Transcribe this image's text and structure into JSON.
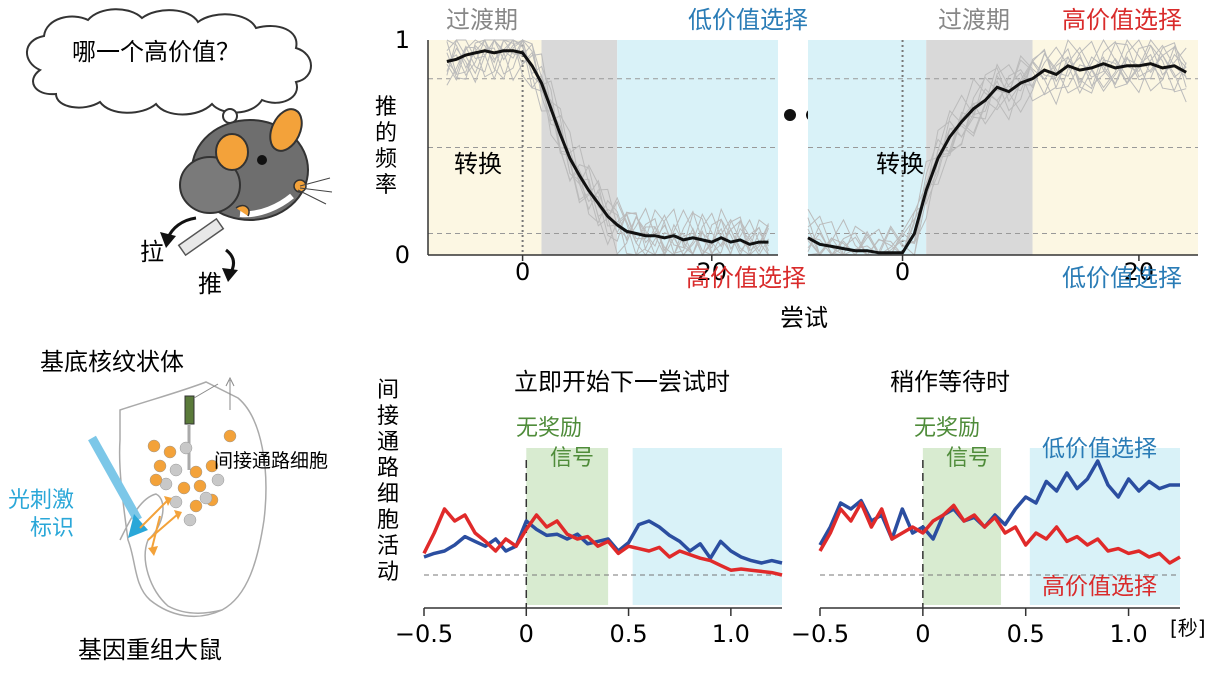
{
  "colors": {
    "high_value": "#d92b2b",
    "low_value": "#2a7cb6",
    "reward": "#4f8c3a",
    "ind_blue": "#2b4ea0",
    "ind_red": "#e02a2a",
    "optotag": "#2aa7d8",
    "neuron": "#f3a23a",
    "neuron_other": "#c8c8c8",
    "transition_shade": "#d9d9d9",
    "low_shade": "#d9f2f8",
    "high_shade": "#fcf7e3",
    "reward_shade": "#d8ebd0"
  },
  "mouse": {
    "thought": "哪一个高价值？",
    "pull": "拉",
    "push": "推"
  },
  "brain": {
    "title": "基底核纹状体",
    "cell_label": "间接通路细胞",
    "opto_line1": "光刺激",
    "opto_line2": "标识",
    "caption": "基因重组大鼠"
  },
  "chart_data": [
    {
      "id": "behavior-left",
      "type": "line",
      "title": "",
      "ylabel": "推的频率",
      "xlabel": "尝试",
      "xlim": [
        -10,
        27
      ],
      "ylim": [
        0,
        1
      ],
      "x_ticks": [
        {
          "v": 0,
          "label": "0"
        },
        {
          "v": 20,
          "label": "20"
        }
      ],
      "y_ticks": [
        {
          "v": 0,
          "label": "0"
        },
        {
          "v": 1,
          "label": "1"
        }
      ],
      "annotations": {
        "switch": "转换",
        "transition": "过渡期",
        "block_after": "低价值选择",
        "block_before": "高价值选择"
      },
      "regions": [
        {
          "x0": -10,
          "x1": 2,
          "kind": "high"
        },
        {
          "x0": 2,
          "x1": 10,
          "kind": "transition"
        },
        {
          "x0": 10,
          "x1": 27,
          "kind": "low"
        }
      ],
      "series": [
        {
          "name": "平均",
          "x": [
            -8,
            -7,
            -6,
            -5,
            -4,
            -3,
            -2,
            -1,
            0,
            1,
            2,
            3,
            4,
            5,
            6,
            7,
            8,
            9,
            10,
            11,
            12,
            13,
            14,
            15,
            16,
            17,
            18,
            19,
            20,
            21,
            22,
            23,
            24,
            25,
            26
          ],
          "values": [
            0.9,
            0.91,
            0.93,
            0.94,
            0.95,
            0.94,
            0.95,
            0.95,
            0.94,
            0.88,
            0.8,
            0.68,
            0.56,
            0.45,
            0.37,
            0.3,
            0.24,
            0.18,
            0.14,
            0.11,
            0.1,
            0.09,
            0.09,
            0.08,
            0.09,
            0.07,
            0.08,
            0.07,
            0.06,
            0.08,
            0.06,
            0.07,
            0.05,
            0.06,
            0.06
          ]
        }
      ]
    },
    {
      "id": "behavior-right",
      "type": "line",
      "title": "",
      "ylabel": "",
      "xlabel": "",
      "xlim": [
        -8,
        25
      ],
      "ylim": [
        0,
        1
      ],
      "x_ticks": [
        {
          "v": 0,
          "label": "0"
        },
        {
          "v": 20,
          "label": "20"
        }
      ],
      "y_ticks": [],
      "annotations": {
        "switch": "转换",
        "transition": "过渡期",
        "block_after": "高价值选择",
        "block_before": "低价值选择"
      },
      "regions": [
        {
          "x0": -8,
          "x1": 2,
          "kind": "low"
        },
        {
          "x0": 2,
          "x1": 11,
          "kind": "transition"
        },
        {
          "x0": 11,
          "x1": 25,
          "kind": "high"
        }
      ],
      "series": [
        {
          "name": "平均",
          "x": [
            -8,
            -7,
            -6,
            -5,
            -4,
            -3,
            -2,
            -1,
            0,
            1,
            2,
            3,
            4,
            5,
            6,
            7,
            8,
            9,
            10,
            11,
            12,
            13,
            14,
            15,
            16,
            17,
            18,
            19,
            20,
            21,
            22,
            23,
            24
          ],
          "values": [
            0.08,
            0.05,
            0.04,
            0.03,
            0.02,
            0.02,
            0.01,
            0.01,
            0.01,
            0.1,
            0.3,
            0.45,
            0.55,
            0.62,
            0.68,
            0.72,
            0.78,
            0.76,
            0.8,
            0.82,
            0.86,
            0.84,
            0.88,
            0.86,
            0.87,
            0.89,
            0.87,
            0.88,
            0.88,
            0.89,
            0.87,
            0.88,
            0.85
          ]
        }
      ]
    },
    {
      "id": "neural-immediate",
      "type": "line",
      "title": "立即开始下一尝试时",
      "ylabel": "间接通路细胞活动",
      "xlabel": "",
      "xlim": [
        -0.5,
        1.25
      ],
      "ylim": [
        0,
        1
      ],
      "x_ticks": [
        {
          "v": -0.5,
          "label": "−0.5"
        },
        {
          "v": 0,
          "label": "0"
        },
        {
          "v": 0.5,
          "label": "0.5"
        },
        {
          "v": 1.0,
          "label": "1.0"
        }
      ],
      "annotations": {
        "no_reward_line1": "无奖励",
        "no_reward_line2": "信号"
      },
      "regions": [
        {
          "x0": 0,
          "x1": 0.4,
          "kind": "reward"
        },
        {
          "x0": 0.52,
          "x1": 1.25,
          "kind": "low"
        }
      ],
      "series": [
        {
          "name": "低价值选择",
          "x": [
            -0.5,
            -0.45,
            -0.4,
            -0.35,
            -0.3,
            -0.25,
            -0.2,
            -0.15,
            -0.1,
            -0.05,
            0,
            0.05,
            0.1,
            0.15,
            0.2,
            0.25,
            0.3,
            0.35,
            0.4,
            0.45,
            0.5,
            0.55,
            0.6,
            0.65,
            0.7,
            0.75,
            0.8,
            0.85,
            0.9,
            0.95,
            1.0,
            1.05,
            1.1,
            1.15,
            1.2,
            1.25
          ],
          "values": [
            0.15,
            0.18,
            0.2,
            0.25,
            0.32,
            0.28,
            0.24,
            0.3,
            0.2,
            0.24,
            0.45,
            0.38,
            0.33,
            0.34,
            0.3,
            0.34,
            0.26,
            0.28,
            0.3,
            0.2,
            0.27,
            0.42,
            0.45,
            0.4,
            0.33,
            0.28,
            0.2,
            0.26,
            0.14,
            0.28,
            0.2,
            0.15,
            0.12,
            0.1,
            0.12,
            0.1
          ]
        },
        {
          "name": "高价值选择",
          "x": [
            -0.5,
            -0.45,
            -0.4,
            -0.35,
            -0.3,
            -0.25,
            -0.2,
            -0.15,
            -0.1,
            -0.05,
            0,
            0.05,
            0.1,
            0.15,
            0.2,
            0.25,
            0.3,
            0.35,
            0.4,
            0.45,
            0.5,
            0.55,
            0.6,
            0.65,
            0.7,
            0.75,
            0.8,
            0.85,
            0.9,
            0.95,
            1.0,
            1.05,
            1.1,
            1.15,
            1.2,
            1.25
          ],
          "values": [
            0.18,
            0.35,
            0.55,
            0.45,
            0.5,
            0.35,
            0.28,
            0.2,
            0.3,
            0.24,
            0.38,
            0.5,
            0.4,
            0.45,
            0.34,
            0.3,
            0.32,
            0.24,
            0.28,
            0.18,
            0.24,
            0.22,
            0.2,
            0.23,
            0.15,
            0.2,
            0.17,
            0.14,
            0.12,
            0.08,
            0.04,
            0.05,
            0.04,
            0.03,
            0.02,
            0.0
          ]
        }
      ]
    },
    {
      "id": "neural-wait",
      "type": "line",
      "title": "稍作等待时",
      "ylabel": "",
      "xlabel": "[秒]",
      "xlim": [
        -0.5,
        1.25
      ],
      "ylim": [
        0,
        1
      ],
      "x_ticks": [
        {
          "v": -0.5,
          "label": "−0.5"
        },
        {
          "v": 0,
          "label": "0"
        },
        {
          "v": 0.5,
          "label": "0.5"
        },
        {
          "v": 1.0,
          "label": "1.0"
        }
      ],
      "annotations": {
        "no_reward_line1": "无奖励",
        "no_reward_line2": "信号",
        "low_label": "低价值选择",
        "high_label": "高价值选择"
      },
      "regions": [
        {
          "x0": 0,
          "x1": 0.38,
          "kind": "reward"
        },
        {
          "x0": 0.52,
          "x1": 1.25,
          "kind": "low"
        }
      ],
      "series": [
        {
          "name": "低价值选择",
          "x": [
            -0.5,
            -0.45,
            -0.4,
            -0.35,
            -0.3,
            -0.25,
            -0.2,
            -0.15,
            -0.1,
            -0.05,
            0,
            0.05,
            0.1,
            0.15,
            0.2,
            0.25,
            0.3,
            0.35,
            0.4,
            0.45,
            0.5,
            0.55,
            0.6,
            0.65,
            0.7,
            0.75,
            0.8,
            0.85,
            0.9,
            0.95,
            1.0,
            1.05,
            1.1,
            1.15,
            1.2,
            1.25
          ],
          "values": [
            0.25,
            0.4,
            0.6,
            0.55,
            0.62,
            0.45,
            0.5,
            0.3,
            0.55,
            0.35,
            0.4,
            0.3,
            0.5,
            0.55,
            0.45,
            0.48,
            0.4,
            0.5,
            0.42,
            0.55,
            0.65,
            0.6,
            0.78,
            0.7,
            0.85,
            0.72,
            0.8,
            0.95,
            0.75,
            0.65,
            0.8,
            0.7,
            0.78,
            0.72,
            0.75,
            0.75
          ]
        },
        {
          "name": "高价值选择",
          "x": [
            -0.5,
            -0.45,
            -0.4,
            -0.35,
            -0.3,
            -0.25,
            -0.2,
            -0.15,
            -0.1,
            -0.05,
            0,
            0.05,
            0.1,
            0.15,
            0.2,
            0.25,
            0.3,
            0.35,
            0.4,
            0.45,
            0.5,
            0.55,
            0.6,
            0.65,
            0.7,
            0.75,
            0.8,
            0.85,
            0.9,
            0.95,
            1.0,
            1.05,
            1.1,
            1.15,
            1.2,
            1.25
          ],
          "values": [
            0.2,
            0.35,
            0.55,
            0.45,
            0.6,
            0.4,
            0.55,
            0.3,
            0.35,
            0.4,
            0.35,
            0.45,
            0.5,
            0.58,
            0.45,
            0.5,
            0.4,
            0.48,
            0.35,
            0.4,
            0.25,
            0.35,
            0.3,
            0.4,
            0.28,
            0.32,
            0.25,
            0.3,
            0.2,
            0.22,
            0.18,
            0.2,
            0.15,
            0.18,
            0.1,
            0.15
          ]
        }
      ]
    }
  ]
}
